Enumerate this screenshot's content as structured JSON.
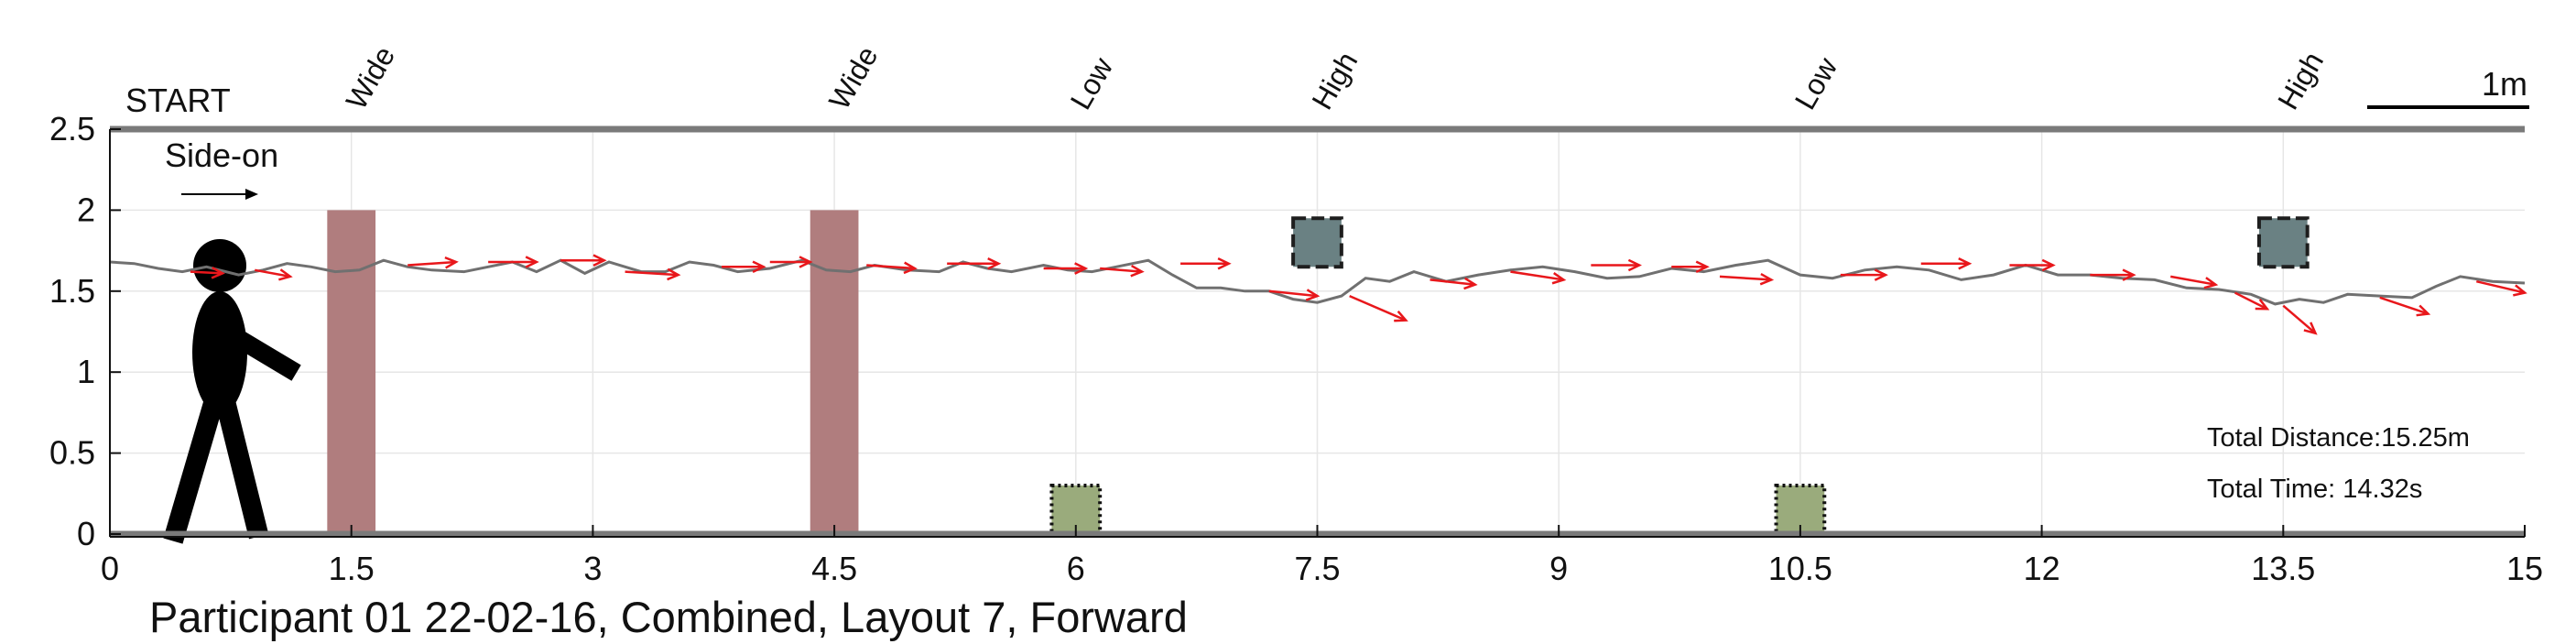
{
  "chart_data": {
    "type": "line",
    "title": "Participant 01 22-02-16, Combined, Layout 7, Forward",
    "xlabel": "",
    "ylabel": "",
    "xlim": [
      0,
      15
    ],
    "ylim": [
      0,
      2.5
    ],
    "xticks": [
      0,
      1.5,
      3,
      4.5,
      6,
      7.5,
      9,
      10.5,
      12,
      13.5,
      15
    ],
    "xtick_labels": [
      "0",
      "1.5",
      "3",
      "4.5",
      "6",
      "7.5",
      "9",
      "10.5",
      "12",
      "13.5",
      "15"
    ],
    "yticks": [
      0,
      0.5,
      1,
      1.5,
      2,
      2.5
    ],
    "ytick_labels": [
      "0",
      "0.5",
      "1",
      "1.5",
      "2",
      "2.5"
    ],
    "grid": true,
    "start_label": "START",
    "view_label": "Side-on",
    "scale_bar_label": "1m",
    "scale_bar_length": 1,
    "total_distance": "Total Distance:15.25m",
    "total_time": "Total Time: 14.32s",
    "obstacles": [
      {
        "label": "Wide",
        "kind": "wide",
        "x": [
          1.35,
          1.65
        ],
        "y": [
          0,
          2
        ],
        "color": "#b07d7e"
      },
      {
        "label": "Wide",
        "kind": "wide",
        "x": [
          4.35,
          4.65
        ],
        "y": [
          0,
          2
        ],
        "color": "#b07d7e"
      },
      {
        "label": "Low",
        "kind": "low",
        "x": [
          5.85,
          6.15
        ],
        "y": [
          0,
          0.3
        ],
        "color": "#9aab7c"
      },
      {
        "label": "High",
        "kind": "high",
        "x": [
          7.35,
          7.65
        ],
        "y": [
          1.65,
          1.95
        ],
        "color": "#6a8183"
      },
      {
        "label": "Low",
        "kind": "low",
        "x": [
          10.35,
          10.65
        ],
        "y": [
          0,
          0.3
        ],
        "color": "#9aab7c"
      },
      {
        "label": "High",
        "kind": "high",
        "x": [
          13.35,
          13.65
        ],
        "y": [
          1.65,
          1.95
        ],
        "color": "#6a8183"
      }
    ],
    "series": [
      {
        "x": [
          0,
          0.15,
          0.3,
          0.45,
          0.6,
          0.8,
          0.95,
          1.1,
          1.25,
          1.4,
          1.55,
          1.7,
          1.85,
          2.0,
          2.2,
          2.35,
          2.5,
          2.65,
          2.8,
          2.95,
          3.1,
          3.3,
          3.45,
          3.6,
          3.75,
          3.9,
          4.1,
          4.3,
          4.45,
          4.6,
          4.75,
          4.95,
          5.15,
          5.3,
          5.45,
          5.6,
          5.8,
          5.95,
          6.1,
          6.25,
          6.45,
          6.6,
          6.75,
          6.9,
          7.05,
          7.2,
          7.35,
          7.5,
          7.65,
          7.8,
          7.95,
          8.1,
          8.3,
          8.5,
          8.7,
          8.9,
          9.1,
          9.3,
          9.5,
          9.7,
          9.9,
          10.1,
          10.3,
          10.5,
          10.7,
          10.9,
          11.1,
          11.3,
          11.5,
          11.7,
          11.9,
          12.1,
          12.3,
          12.5,
          12.7,
          12.9,
          13.1,
          13.3,
          13.45,
          13.6,
          13.75,
          13.9,
          14.1,
          14.3,
          14.45,
          14.6,
          14.8,
          15.0
        ],
        "y": [
          1.68,
          1.67,
          1.64,
          1.62,
          1.65,
          1.6,
          1.63,
          1.67,
          1.65,
          1.62,
          1.63,
          1.69,
          1.65,
          1.63,
          1.62,
          1.65,
          1.68,
          1.62,
          1.69,
          1.61,
          1.68,
          1.62,
          1.62,
          1.68,
          1.66,
          1.62,
          1.64,
          1.69,
          1.63,
          1.62,
          1.66,
          1.63,
          1.62,
          1.68,
          1.64,
          1.62,
          1.66,
          1.63,
          1.62,
          1.65,
          1.69,
          1.6,
          1.52,
          1.52,
          1.5,
          1.5,
          1.45,
          1.43,
          1.47,
          1.58,
          1.56,
          1.62,
          1.56,
          1.6,
          1.63,
          1.65,
          1.62,
          1.58,
          1.59,
          1.64,
          1.62,
          1.66,
          1.69,
          1.6,
          1.58,
          1.63,
          1.65,
          1.63,
          1.57,
          1.6,
          1.66,
          1.6,
          1.6,
          1.58,
          1.57,
          1.52,
          1.51,
          1.48,
          1.42,
          1.45,
          1.43,
          1.48,
          1.47,
          1.46,
          1.53,
          1.59,
          1.56,
          1.55
        ],
        "color": "#707070"
      }
    ],
    "heading_arrows": [
      {
        "x": 0.5,
        "y": 1.62,
        "dx": 0.2,
        "dy": -0.01
      },
      {
        "x": 0.9,
        "y": 1.63,
        "dx": 0.22,
        "dy": -0.04
      },
      {
        "x": 1.85,
        "y": 1.66,
        "dx": 0.3,
        "dy": 0.02
      },
      {
        "x": 2.35,
        "y": 1.68,
        "dx": 0.3,
        "dy": 0.0
      },
      {
        "x": 2.8,
        "y": 1.69,
        "dx": 0.27,
        "dy": 0.0
      },
      {
        "x": 3.2,
        "y": 1.62,
        "dx": 0.33,
        "dy": -0.02
      },
      {
        "x": 3.8,
        "y": 1.65,
        "dx": 0.26,
        "dy": 0.0
      },
      {
        "x": 4.1,
        "y": 1.68,
        "dx": 0.25,
        "dy": 0.0
      },
      {
        "x": 4.7,
        "y": 1.66,
        "dx": 0.3,
        "dy": -0.02
      },
      {
        "x": 5.2,
        "y": 1.67,
        "dx": 0.32,
        "dy": 0.0
      },
      {
        "x": 5.8,
        "y": 1.64,
        "dx": 0.26,
        "dy": 0.0
      },
      {
        "x": 6.15,
        "y": 1.64,
        "dx": 0.26,
        "dy": -0.02
      },
      {
        "x": 6.65,
        "y": 1.67,
        "dx": 0.3,
        "dy": 0.0
      },
      {
        "x": 7.2,
        "y": 1.5,
        "dx": 0.3,
        "dy": -0.03
      },
      {
        "x": 7.7,
        "y": 1.47,
        "dx": 0.35,
        "dy": -0.15
      },
      {
        "x": 8.2,
        "y": 1.57,
        "dx": 0.28,
        "dy": -0.03
      },
      {
        "x": 8.7,
        "y": 1.62,
        "dx": 0.33,
        "dy": -0.05
      },
      {
        "x": 9.2,
        "y": 1.66,
        "dx": 0.3,
        "dy": 0.0
      },
      {
        "x": 9.7,
        "y": 1.65,
        "dx": 0.22,
        "dy": 0.0
      },
      {
        "x": 10.0,
        "y": 1.59,
        "dx": 0.32,
        "dy": -0.02
      },
      {
        "x": 10.75,
        "y": 1.6,
        "dx": 0.28,
        "dy": 0.0
      },
      {
        "x": 11.25,
        "y": 1.67,
        "dx": 0.3,
        "dy": 0.0
      },
      {
        "x": 11.8,
        "y": 1.66,
        "dx": 0.27,
        "dy": 0.0
      },
      {
        "x": 12.3,
        "y": 1.6,
        "dx": 0.27,
        "dy": 0.0
      },
      {
        "x": 12.8,
        "y": 1.59,
        "dx": 0.28,
        "dy": -0.05
      },
      {
        "x": 13.2,
        "y": 1.49,
        "dx": 0.2,
        "dy": -0.1
      },
      {
        "x": 13.5,
        "y": 1.41,
        "dx": 0.2,
        "dy": -0.17
      },
      {
        "x": 14.1,
        "y": 1.46,
        "dx": 0.3,
        "dy": -0.1
      },
      {
        "x": 14.7,
        "y": 1.56,
        "dx": 0.3,
        "dy": -0.07
      }
    ]
  }
}
